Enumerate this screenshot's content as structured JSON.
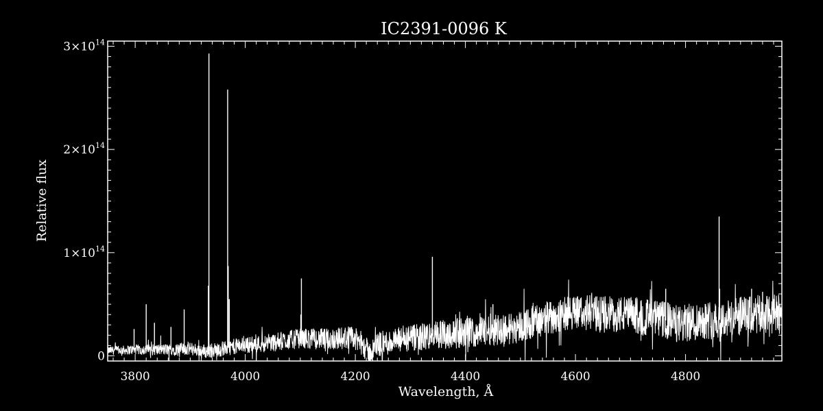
{
  "chart_data": {
    "type": "line",
    "title": "IC2391-0096  K",
    "xlabel": "Wavelength, Å",
    "ylabel": "Relative flux",
    "xlim": [
      3750,
      4975
    ],
    "ylim": [
      -5000000000000.0,
      305000000000000.0
    ],
    "x_ticks": [
      {
        "value": 3800,
        "label": "3800"
      },
      {
        "value": 4000,
        "label": "4000"
      },
      {
        "value": 4200,
        "label": "4200"
      },
      {
        "value": 4400,
        "label": "4400"
      },
      {
        "value": 4600,
        "label": "4600"
      },
      {
        "value": 4800,
        "label": "4800"
      }
    ],
    "y_ticks": [
      {
        "value": 0,
        "mantissa": "0",
        "exponent": ""
      },
      {
        "value": 100000000000000.0,
        "mantissa": "1×10",
        "exponent": "14"
      },
      {
        "value": 200000000000000.0,
        "mantissa": "2×10",
        "exponent": "14"
      },
      {
        "value": 300000000000000.0,
        "mantissa": "3×10",
        "exponent": "14"
      }
    ],
    "grid": false,
    "colors": {
      "background": "#000000",
      "foreground": "#ffffff",
      "series": "#ffffff"
    },
    "series": [
      {
        "continuum": [
          [
            3750,
            5000000000000.0
          ],
          [
            3800,
            6000000000000.0
          ],
          [
            3850,
            6000000000000.0
          ],
          [
            3900,
            7000000000000.0
          ],
          [
            3930,
            4000000000000.0
          ],
          [
            3950,
            6000000000000.0
          ],
          [
            3990,
            10000000000000.0
          ],
          [
            4050,
            13000000000000.0
          ],
          [
            4100,
            17000000000000.0
          ],
          [
            4150,
            16000000000000.0
          ],
          [
            4190,
            18000000000000.0
          ],
          [
            4210,
            13000000000000.0
          ],
          [
            4226,
            2000000000000.0
          ],
          [
            4240,
            11000000000000.0
          ],
          [
            4280,
            15000000000000.0
          ],
          [
            4320,
            18000000000000.0
          ],
          [
            4360,
            21000000000000.0
          ],
          [
            4400,
            22000000000000.0
          ],
          [
            4450,
            26000000000000.0
          ],
          [
            4480,
            26000000000000.0
          ],
          [
            4520,
            32000000000000.0
          ],
          [
            4560,
            38000000000000.0
          ],
          [
            4600,
            43000000000000.0
          ],
          [
            4640,
            41000000000000.0
          ],
          [
            4700,
            40000000000000.0
          ],
          [
            4760,
            35000000000000.0
          ],
          [
            4790,
            30000000000000.0
          ],
          [
            4830,
            35000000000000.0
          ],
          [
            4870,
            35000000000000.0
          ],
          [
            4900,
            38000000000000.0
          ],
          [
            4950,
            40000000000000.0
          ],
          [
            4975,
            40000000000000.0
          ]
        ],
        "noise_amplitude": [
          [
            3750,
            4000000000000.0
          ],
          [
            4000,
            8000000000000.0
          ],
          [
            4400,
            15000000000000.0
          ],
          [
            4700,
            18000000000000.0
          ],
          [
            4975,
            20000000000000.0
          ]
        ],
        "features": [
          {
            "x": 3934,
            "y": 293000000000000.0
          },
          {
            "x": 3933,
            "y": 68000000000000.0
          },
          {
            "x": 3968,
            "y": 258000000000000.0
          },
          {
            "x": 3969,
            "y": 87000000000000.0
          },
          {
            "x": 3971,
            "y": 55000000000000.0
          },
          {
            "x": 4102,
            "y": 75000000000000.0
          },
          {
            "x": 4101,
            "y": 40000000000000.0
          },
          {
            "x": 4340,
            "y": 96000000000000.0
          },
          {
            "x": 4861,
            "y": 135000000000000.0
          },
          {
            "x": 4862,
            "y": 65000000000000.0
          },
          {
            "x": 4764,
            "y": 65000000000000.0
          },
          {
            "x": 3889,
            "y": 45000000000000.0
          },
          {
            "x": 3820,
            "y": 50000000000000.0
          },
          {
            "x": 3798,
            "y": 26000000000000.0
          },
          {
            "x": 3835,
            "y": 32000000000000.0
          },
          {
            "x": 3865,
            "y": 28000000000000.0
          },
          {
            "x": 4450,
            "y": 50000000000000.0
          },
          {
            "x": 4555,
            "y": 52000000000000.0
          },
          {
            "x": 4920,
            "y": 65000000000000.0
          },
          {
            "x": 4940,
            "y": 62000000000000.0
          },
          {
            "x": 4960,
            "y": 55000000000000.0
          }
        ]
      }
    ]
  }
}
